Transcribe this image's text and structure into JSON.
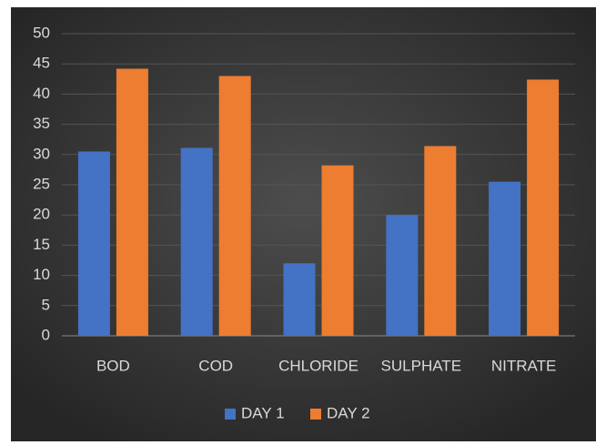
{
  "chart_data": {
    "type": "bar",
    "categories": [
      "BOD",
      "COD",
      "CHLORIDE",
      "SULPHATE",
      "NITRATE"
    ],
    "series": [
      {
        "name": "DAY 1",
        "color": "#4472c4",
        "values": [
          30.5,
          31.1,
          12,
          20,
          25.5
        ]
      },
      {
        "name": "DAY 2",
        "color": "#ed7d31",
        "values": [
          44.2,
          43,
          28.2,
          31.4,
          42.4
        ]
      }
    ],
    "ylim": [
      0,
      50
    ],
    "yticks": [
      0,
      5,
      10,
      15,
      20,
      25,
      30,
      35,
      40,
      45,
      50
    ],
    "grid": true,
    "legend": "bottom"
  }
}
